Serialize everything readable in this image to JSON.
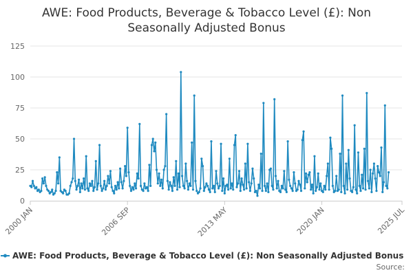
{
  "chart_data": {
    "type": "line",
    "title_lines": [
      "AWE: Food Products, Beverage & Tobacco Level (£): Non",
      "Seasonally Adjusted Bonus"
    ],
    "xlabel": "",
    "ylabel": "",
    "ylim": [
      0,
      125
    ],
    "yticks": [
      0,
      25,
      50,
      75,
      100,
      125
    ],
    "xlim": [
      0,
      306
    ],
    "xticks": [
      {
        "label": "2000 JAN",
        "x": 0
      },
      {
        "label": "2006 SEP",
        "x": 80
      },
      {
        "label": "2013 MAY",
        "x": 160
      },
      {
        "label": "2020 JAN",
        "x": 240
      },
      {
        "label": "2025 JUL",
        "x": 306
      }
    ],
    "grid": true,
    "legend_position": "bottom",
    "series": [
      {
        "name": "AWE: Food Products, Beverage & Tobacco Level (£): Non Seasonally Adjusted Bonus",
        "color": "#1f8ac0",
        "values": [
          12,
          11,
          16,
          12,
          10,
          11,
          8,
          9,
          7,
          8,
          18,
          14,
          19,
          12,
          9,
          8,
          6,
          7,
          9,
          5,
          6,
          8,
          23,
          14,
          35,
          8,
          7,
          6,
          9,
          8,
          5,
          5,
          6,
          12,
          15,
          18,
          50,
          16,
          9,
          12,
          17,
          7,
          14,
          10,
          18,
          9,
          36,
          10,
          8,
          14,
          12,
          16,
          8,
          11,
          32,
          9,
          14,
          45,
          12,
          8,
          10,
          16,
          9,
          12,
          20,
          14,
          24,
          11,
          8,
          6,
          12,
          9,
          15,
          10,
          26,
          15,
          10,
          16,
          28,
          20,
          59,
          23,
          12,
          8,
          11,
          9,
          14,
          10,
          22,
          18,
          62,
          12,
          9,
          8,
          14,
          10,
          11,
          8,
          29,
          12,
          45,
          50,
          40,
          47,
          25,
          14,
          22,
          12,
          17,
          10,
          25,
          28,
          70,
          16,
          9,
          15,
          12,
          8,
          19,
          12,
          32,
          9,
          22,
          11,
          104,
          20,
          12,
          10,
          30,
          16,
          9,
          14,
          12,
          47,
          9,
          85,
          16,
          8,
          6,
          7,
          10,
          34,
          28,
          8,
          11,
          14,
          12,
          9,
          7,
          48,
          10,
          12,
          7,
          24,
          14,
          10,
          12,
          46,
          8,
          18,
          6,
          12,
          13,
          9,
          34,
          10,
          14,
          9,
          45,
          53,
          11,
          14,
          24,
          8,
          18,
          13,
          9,
          30,
          10,
          46,
          15,
          8,
          14,
          26,
          18,
          7,
          8,
          4,
          13,
          10,
          38,
          8,
          79,
          12,
          8,
          14,
          7,
          25,
          26,
          12,
          9,
          82,
          20,
          10,
          16,
          8,
          7,
          12,
          10,
          24,
          9,
          7,
          48,
          17,
          12,
          10,
          8,
          23,
          14,
          8,
          9,
          16,
          13,
          8,
          49,
          56,
          10,
          22,
          15,
          21,
          23,
          9,
          13,
          6,
          36,
          8,
          11,
          22,
          9,
          14,
          8,
          7,
          12,
          9,
          20,
          30,
          9,
          51,
          42,
          12,
          7,
          8,
          20,
          8,
          9,
          38,
          7,
          85,
          12,
          6,
          30,
          9,
          41,
          18,
          8,
          7,
          11,
          61,
          9,
          6,
          39,
          12,
          8,
          21,
          10,
          42,
          9,
          87,
          16,
          10,
          25,
          7,
          22,
          30,
          18,
          8,
          28,
          23,
          20,
          43,
          7,
          15,
          77,
          12,
          10,
          23
        ]
      }
    ],
    "legend_entries": [
      "AWE: Food Products, Beverage & Tobacco Level (£): Non Seasonally Adjusted Bonus"
    ],
    "source_label": "Source:"
  }
}
